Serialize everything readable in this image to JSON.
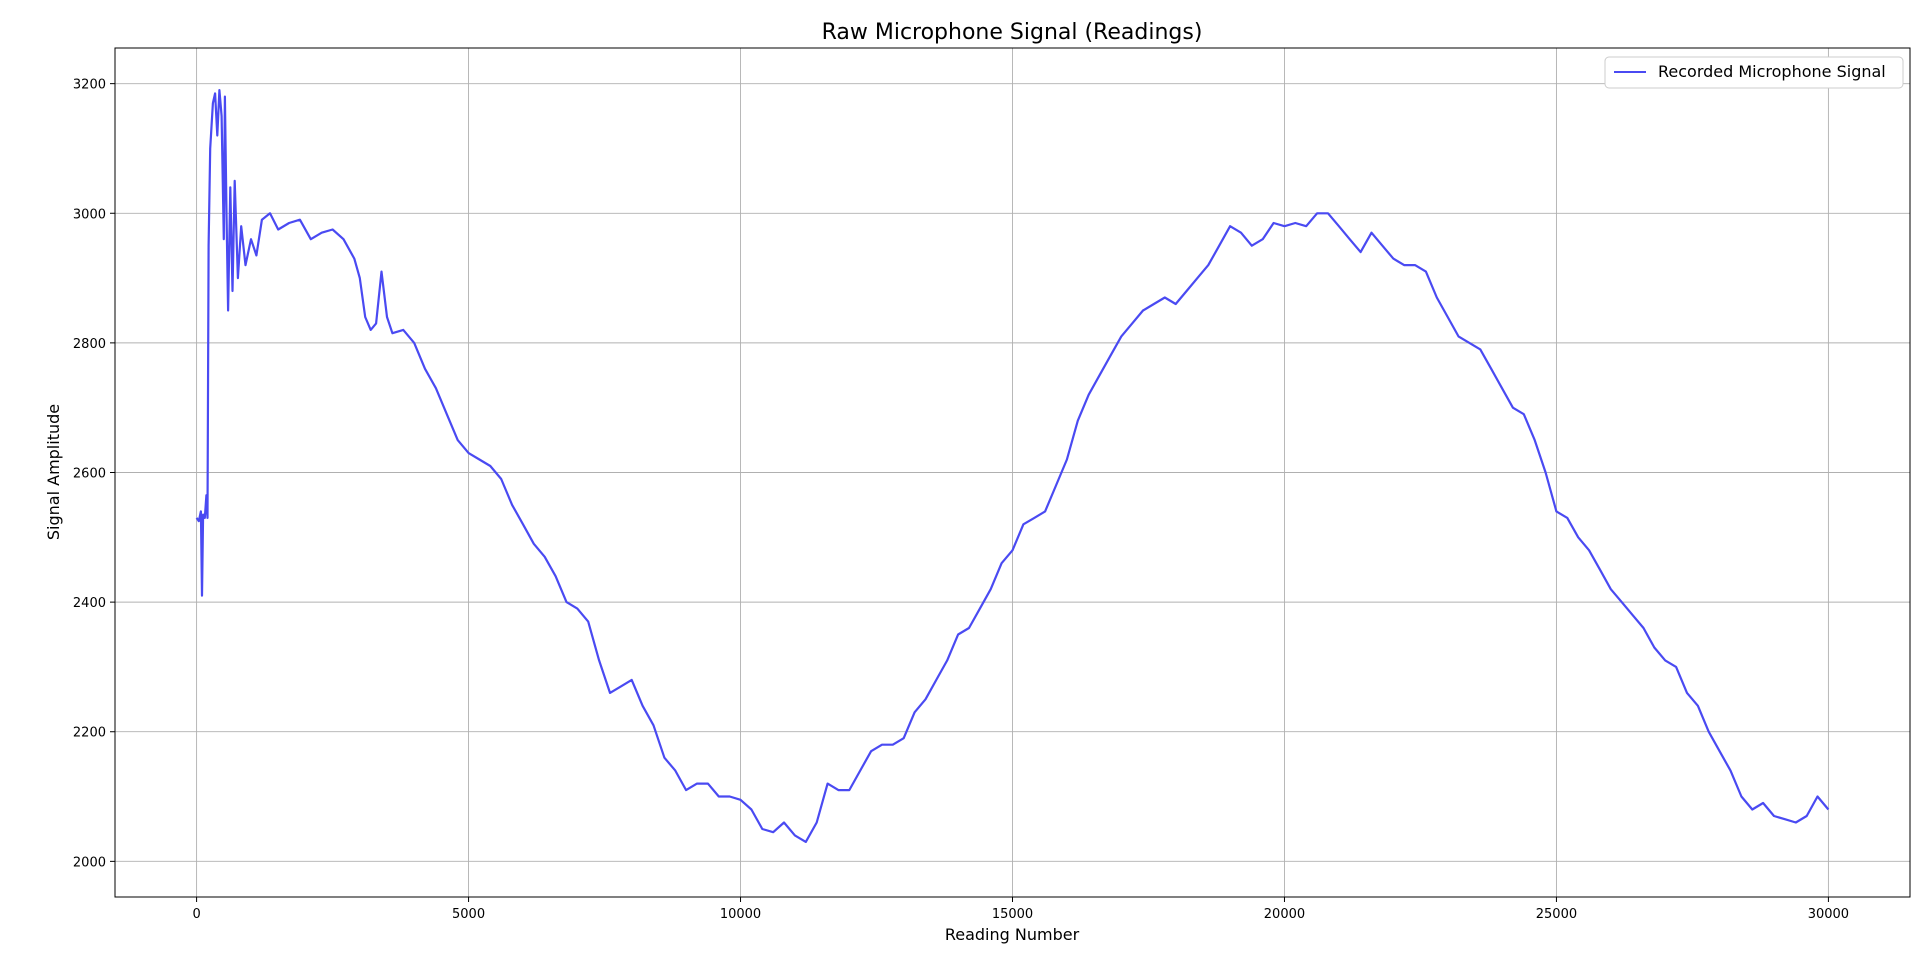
{
  "chart_data": {
    "type": "line",
    "title": "Raw Microphone Signal (Readings)",
    "xlabel": "Reading Number",
    "ylabel": "Signal Amplitude",
    "xlim": [
      -1500,
      31500
    ],
    "ylim": [
      1945,
      3255
    ],
    "xticks": [
      0,
      5000,
      10000,
      15000,
      20000,
      25000,
      30000
    ],
    "yticks": [
      2000,
      2200,
      2400,
      2600,
      2800,
      3000,
      3200
    ],
    "grid": true,
    "legend": {
      "position": "top-right"
    },
    "colors": {
      "series": "#4a4af2"
    },
    "series": [
      {
        "name": "Recorded Microphone Signal",
        "x": [
          0,
          40,
          80,
          100,
          120,
          150,
          180,
          200,
          220,
          250,
          300,
          340,
          380,
          420,
          460,
          500,
          520,
          550,
          580,
          620,
          660,
          700,
          760,
          820,
          900,
          1000,
          1100,
          1200,
          1350,
          1500,
          1700,
          1900,
          2100,
          2300,
          2500,
          2700,
          2900,
          3000,
          3100,
          3200,
          3300,
          3400,
          3500,
          3600,
          3800,
          4000,
          4200,
          4400,
          4600,
          4800,
          5000,
          5200,
          5400,
          5600,
          5800,
          6000,
          6200,
          6400,
          6600,
          6800,
          7000,
          7200,
          7400,
          7600,
          7800,
          8000,
          8200,
          8400,
          8600,
          8800,
          9000,
          9200,
          9400,
          9600,
          9800,
          10000,
          10200,
          10400,
          10600,
          10800,
          11000,
          11200,
          11400,
          11600,
          11800,
          12000,
          12200,
          12400,
          12600,
          12800,
          13000,
          13200,
          13400,
          13600,
          13800,
          14000,
          14200,
          14400,
          14600,
          14800,
          15000,
          15200,
          15400,
          15600,
          15800,
          16000,
          16200,
          16400,
          16600,
          16800,
          17000,
          17200,
          17400,
          17600,
          17800,
          18000,
          18200,
          18400,
          18600,
          18800,
          19000,
          19200,
          19400,
          19600,
          19800,
          20000,
          20200,
          20400,
          20600,
          20800,
          21000,
          21200,
          21400,
          21600,
          21800,
          22000,
          22200,
          22400,
          22600,
          22800,
          23000,
          23200,
          23400,
          23600,
          23800,
          24000,
          24200,
          24400,
          24600,
          24800,
          25000,
          25200,
          25400,
          25600,
          25800,
          26000,
          26200,
          26400,
          26600,
          26800,
          27000,
          27200,
          27400,
          27600,
          27800,
          28000,
          28200,
          28400,
          28600,
          28800,
          29000,
          29200,
          29400,
          29600,
          29800,
          30000
        ],
        "y": [
          2530,
          2525,
          2540,
          2410,
          2535,
          2530,
          2565,
          2530,
          2950,
          3100,
          3170,
          3185,
          3120,
          3190,
          3150,
          2960,
          3180,
          3000,
          2850,
          3040,
          2880,
          3050,
          2900,
          2980,
          2920,
          2960,
          2935,
          2990,
          3000,
          2975,
          2985,
          2990,
          2960,
          2970,
          2975,
          2960,
          2930,
          2900,
          2840,
          2820,
          2830,
          2910,
          2840,
          2815,
          2820,
          2800,
          2760,
          2730,
          2690,
          2650,
          2630,
          2620,
          2610,
          2590,
          2550,
          2520,
          2490,
          2470,
          2440,
          2400,
          2390,
          2370,
          2310,
          2260,
          2270,
          2280,
          2240,
          2210,
          2160,
          2140,
          2110,
          2120,
          2120,
          2100,
          2100,
          2095,
          2080,
          2050,
          2045,
          2060,
          2040,
          2030,
          2060,
          2120,
          2110,
          2110,
          2140,
          2170,
          2180,
          2180,
          2190,
          2230,
          2250,
          2280,
          2310,
          2350,
          2360,
          2390,
          2420,
          2460,
          2480,
          2520,
          2530,
          2540,
          2580,
          2620,
          2680,
          2720,
          2750,
          2780,
          2810,
          2830,
          2850,
          2860,
          2870,
          2860,
          2880,
          2900,
          2920,
          2950,
          2980,
          2970,
          2950,
          2960,
          2985,
          2980,
          2985,
          2980,
          3000,
          3000,
          2980,
          2960,
          2940,
          2970,
          2950,
          2930,
          2920,
          2920,
          2910,
          2870,
          2840,
          2810,
          2800,
          2790,
          2760,
          2730,
          2700,
          2690,
          2650,
          2600,
          2540,
          2530,
          2500,
          2480,
          2450,
          2420,
          2400,
          2380,
          2360,
          2330,
          2310,
          2300,
          2260,
          2240,
          2200,
          2170,
          2140,
          2100,
          2080,
          2090,
          2070,
          2065,
          2060,
          2070,
          2100,
          2080
        ]
      }
    ]
  }
}
